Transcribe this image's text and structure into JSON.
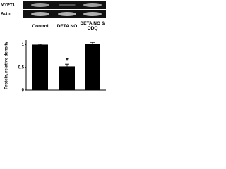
{
  "blot": {
    "rows": [
      "MYPT1",
      "Actin"
    ]
  },
  "chart_data": {
    "type": "bar",
    "categories": [
      "Control",
      "DETA NO",
      "DETA NO & ODQ"
    ],
    "values": [
      1,
      0.52,
      1.02
    ],
    "errors": [
      0.01,
      0.05,
      0.03
    ],
    "color": "#000000",
    "ylabel": "Protein, relative density",
    "annotation": "*",
    "ylim": [
      0,
      1.1
    ],
    "yticks": [
      0,
      0.5,
      1
    ],
    "grid": false
  }
}
